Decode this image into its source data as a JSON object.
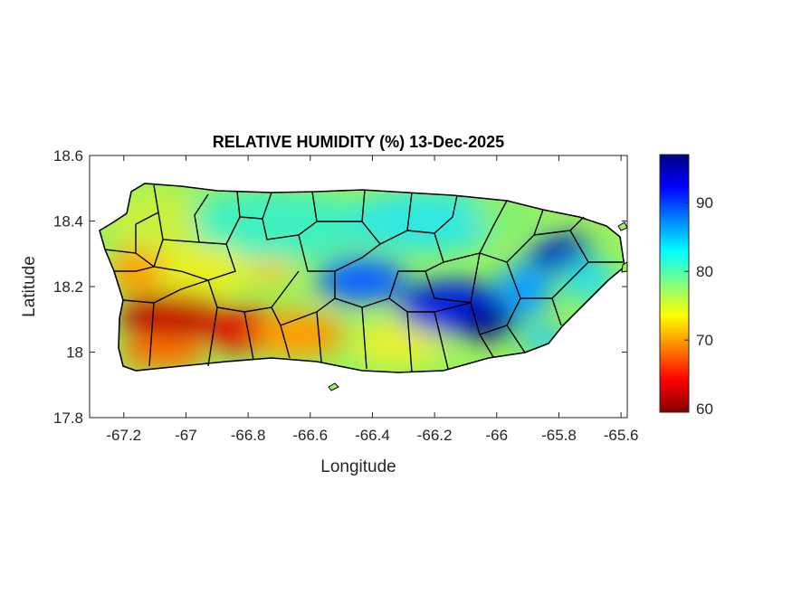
{
  "title": "RELATIVE HUMIDITY (%) 13-Dec-2025",
  "xlabel": "Longitude",
  "ylabel": "Latitude",
  "map": {
    "region": "Puerto Rico",
    "xlim": [
      -67.31,
      -65.58
    ],
    "ylim": [
      17.8,
      18.6
    ],
    "xticks": [
      -67.2,
      -67,
      -66.8,
      -66.6,
      -66.4,
      -66.2,
      -66,
      -65.8,
      -65.6
    ],
    "xtick_labels": [
      "-67.2",
      "-67",
      "-66.8",
      "-66.6",
      "-66.4",
      "-66.2",
      "-66",
      "-65.8",
      "-65.6"
    ],
    "yticks": [
      17.8,
      18,
      18.2,
      18.4,
      18.6
    ],
    "ytick_labels": [
      "17.8",
      "18",
      "18.2",
      "18.4",
      "18.6"
    ]
  },
  "colorbar": {
    "colormap": "jet",
    "range": [
      59.5,
      97
    ],
    "ticks": [
      60,
      70,
      80,
      90
    ],
    "tick_labels": [
      "60",
      "70",
      "80",
      "90"
    ],
    "colors": [
      "#800000",
      "#ff0000",
      "#ff8000",
      "#ffff00",
      "#80ff80",
      "#00ffff",
      "#0080ff",
      "#0000ff",
      "#000080"
    ]
  }
}
